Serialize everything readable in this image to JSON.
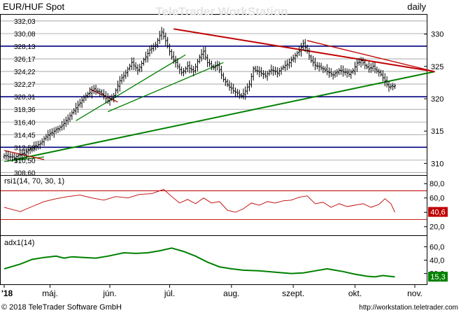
{
  "header": {
    "title": "EUR/HUF Spot",
    "period": "daily",
    "watermark": "TeleTrader WorkStation"
  },
  "footer": {
    "copyright": "© 2018 TeleTrader Software GmbH",
    "url": "http://workstation.teletrader.com"
  },
  "colors": {
    "price": "#000000",
    "trend_up": "#008000",
    "trend_down": "#c00000",
    "h_line_major": "#000080",
    "rsi": "#c00000",
    "adx": "#008000",
    "grid": "#9a9a9a"
  },
  "chart_data": [
    {
      "type": "candlestick",
      "title": "EUR/HUF Spot",
      "ylim": [
        308.2,
        333.0
      ],
      "right_ticks": [
        310,
        315,
        320,
        325,
        330
      ],
      "level_labels": [
        "332,03",
        "330,08",
        "328,13",
        "326,17",
        "324,22",
        "322,27",
        "320,31",
        "318,36",
        "316,40",
        "314,45",
        "312,50",
        "310,50",
        "308,60"
      ],
      "level_values": [
        332.03,
        330.08,
        328.13,
        326.17,
        324.22,
        322.27,
        320.31,
        318.36,
        316.4,
        314.45,
        312.5,
        310.5,
        308.6
      ],
      "major_levels": [
        328.13,
        320.31,
        312.5
      ],
      "x_labels": [
        "'18",
        "máj.",
        "jún.",
        "júl.",
        "aug.",
        "szept.",
        "okt.",
        "nov."
      ],
      "x_label_days": [
        0,
        23,
        53,
        83,
        114,
        145,
        176,
        206
      ],
      "last_day": 196,
      "series": [
        {
          "name": "close",
          "points": [
            [
              0,
              311.2
            ],
            [
              5,
              310.9
            ],
            [
              10,
              311.6
            ],
            [
              15,
              312.6
            ],
            [
              18,
              313.0
            ],
            [
              21,
              314.2
            ],
            [
              25,
              315.0
            ],
            [
              29,
              315.8
            ],
            [
              33,
              317.4
            ],
            [
              37,
              319.0
            ],
            [
              41,
              320.5
            ],
            [
              45,
              321.5
            ],
            [
              49,
              320.8
            ],
            [
              52,
              319.7
            ],
            [
              55,
              320.5
            ],
            [
              58,
              322.8
            ],
            [
              61,
              324.0
            ],
            [
              64,
              325.6
            ],
            [
              67,
              324.4
            ],
            [
              70,
              326.0
            ],
            [
              73,
              327.5
            ],
            [
              76,
              328.4
            ],
            [
              79,
              330.4
            ],
            [
              82,
              328.2
            ],
            [
              84,
              326.4
            ],
            [
              86,
              325.6
            ],
            [
              89,
              324.0
            ],
            [
              92,
              325.0
            ],
            [
              95,
              324.2
            ],
            [
              98,
              326.5
            ],
            [
              100,
              327.3
            ],
            [
              102,
              325.6
            ],
            [
              105,
              324.8
            ],
            [
              107,
              325.2
            ],
            [
              110,
              323.0
            ],
            [
              113,
              321.8
            ],
            [
              116,
              321.0
            ],
            [
              119,
              320.4
            ],
            [
              121,
              321.2
            ],
            [
              123,
              322.3
            ],
            [
              125,
              324.6
            ],
            [
              128,
              324.1
            ],
            [
              131,
              323.6
            ],
            [
              134,
              324.5
            ],
            [
              137,
              324.0
            ],
            [
              140,
              324.9
            ],
            [
              143,
              325.6
            ],
            [
              146,
              326.7
            ],
            [
              148,
              327.4
            ],
            [
              150,
              328.5
            ],
            [
              152,
              327.4
            ],
            [
              154,
              325.9
            ],
            [
              156,
              325.2
            ],
            [
              159,
              324.8
            ],
            [
              162,
              324.2
            ],
            [
              165,
              323.7
            ],
            [
              168,
              324.4
            ],
            [
              171,
              324.1
            ],
            [
              173,
              323.8
            ],
            [
              175,
              324.4
            ],
            [
              177,
              325.5
            ],
            [
              179,
              325.9
            ],
            [
              181,
              325.2
            ],
            [
              183,
              324.6
            ],
            [
              185,
              325.0
            ],
            [
              187,
              324.3
            ],
            [
              189,
              323.8
            ],
            [
              191,
              322.7
            ],
            [
              193,
              321.8
            ],
            [
              196,
              322.0
            ]
          ]
        }
      ],
      "trendlines": [
        {
          "color": "green",
          "from": [
            4,
            310.5
          ],
          "to": [
            216,
            324.2
          ]
        },
        {
          "color": "green",
          "from": [
            36,
            316.6
          ],
          "to": [
            91,
            326.8
          ]
        },
        {
          "color": "green",
          "from": [
            52,
            318.0
          ],
          "to": [
            110,
            325.6
          ]
        },
        {
          "color": "green",
          "from": [
            0,
            310.3
          ],
          "to": [
            20,
            311.0
          ]
        },
        {
          "color": "red",
          "from": [
            85,
            330.8
          ],
          "to": [
            216,
            324.2
          ]
        },
        {
          "color": "red",
          "from": [
            152,
            329.0
          ],
          "to": [
            216,
            324.2
          ]
        },
        {
          "color": "red",
          "from": [
            43,
            321.5
          ],
          "to": [
            57,
            319.5
          ]
        },
        {
          "color": "red",
          "from": [
            0,
            312.0
          ],
          "to": [
            20,
            310.6
          ]
        }
      ]
    },
    {
      "type": "line",
      "title": "rsi1(14, 70, 30, 1)",
      "ylim": [
        9,
        90
      ],
      "right_ticks": [
        20,
        40,
        60,
        80
      ],
      "right_tick_labels": [
        "20,0",
        "40,0",
        "60,0",
        "80,0"
      ],
      "levels": [
        70,
        30
      ],
      "last_value": 40.6,
      "last_value_label": "40,6",
      "series": [
        {
          "name": "rsi",
          "points": [
            [
              0,
              47
            ],
            [
              8,
              41
            ],
            [
              14,
              48
            ],
            [
              20,
              55
            ],
            [
              26,
              59
            ],
            [
              32,
              62
            ],
            [
              38,
              64
            ],
            [
              44,
              60
            ],
            [
              50,
              57
            ],
            [
              56,
              62
            ],
            [
              62,
              60
            ],
            [
              68,
              65
            ],
            [
              74,
              66
            ],
            [
              80,
              72
            ],
            [
              84,
              62
            ],
            [
              88,
              53
            ],
            [
              92,
              58
            ],
            [
              96,
              52
            ],
            [
              100,
              60
            ],
            [
              104,
              53
            ],
            [
              108,
              55
            ],
            [
              112,
              43
            ],
            [
              116,
              40
            ],
            [
              120,
              45
            ],
            [
              124,
              53
            ],
            [
              128,
              50
            ],
            [
              132,
              55
            ],
            [
              136,
              53
            ],
            [
              140,
              56
            ],
            [
              144,
              57
            ],
            [
              148,
              61
            ],
            [
              152,
              63
            ],
            [
              156,
              52
            ],
            [
              160,
              54
            ],
            [
              164,
              47
            ],
            [
              168,
              52
            ],
            [
              172,
              48
            ],
            [
              176,
              50
            ],
            [
              180,
              52
            ],
            [
              184,
              47
            ],
            [
              188,
              51
            ],
            [
              191,
              59
            ],
            [
              194,
              52
            ],
            [
              196,
              40
            ]
          ]
        }
      ]
    },
    {
      "type": "line",
      "title": "adx1(14)",
      "ylim": [
        5,
        75
      ],
      "right_ticks": [
        20,
        40,
        60
      ],
      "right_tick_labels": [
        "20,0",
        "40,0",
        "60,0"
      ],
      "last_value": 15.3,
      "last_value_label": "15,3",
      "series": [
        {
          "name": "adx",
          "points": [
            [
              0,
              27
            ],
            [
              8,
              34
            ],
            [
              14,
              41
            ],
            [
              20,
              44
            ],
            [
              26,
              46
            ],
            [
              30,
              43
            ],
            [
              34,
              45
            ],
            [
              40,
              44
            ],
            [
              46,
              43
            ],
            [
              52,
              46
            ],
            [
              60,
              51
            ],
            [
              66,
              50
            ],
            [
              72,
              51
            ],
            [
              78,
              54
            ],
            [
              84,
              58
            ],
            [
              90,
              53
            ],
            [
              96,
              46
            ],
            [
              102,
              37
            ],
            [
              108,
              30
            ],
            [
              114,
              27
            ],
            [
              120,
              25
            ],
            [
              128,
              24
            ],
            [
              136,
              22
            ],
            [
              144,
              20
            ],
            [
              150,
              21
            ],
            [
              156,
              24
            ],
            [
              162,
              27
            ],
            [
              166,
              25
            ],
            [
              170,
              23
            ],
            [
              176,
              19
            ],
            [
              182,
              16
            ],
            [
              186,
              15
            ],
            [
              190,
              17
            ],
            [
              196,
              15
            ]
          ]
        }
      ]
    }
  ]
}
